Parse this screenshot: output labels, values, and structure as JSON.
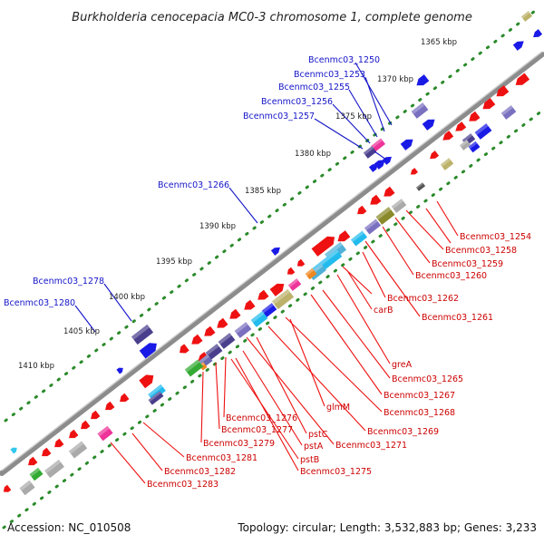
{
  "title": "Burkholderia cenocepacia MC0-3 chromosome 1, complete genome",
  "footer": {
    "accession": "Accession: NC_010508",
    "summary": "Topology: circular; Length: 3,532,883 bp; Genes: 3,233"
  },
  "colors": {
    "backbone": "#8c8c8c",
    "tick": "#2a8a2a",
    "label_upper": "#1414c8",
    "label_lower": "#cc0000",
    "gene_red": "#ee1111",
    "gene_purple": "#4a3f8c"
  },
  "kbp_ticks": [
    "1365 kbp",
    "1370 kbp",
    "1375 kbp",
    "1380 kbp",
    "1385 kbp",
    "1390 kbp",
    "1395 kbp",
    "1400 kbp",
    "1405 kbp",
    "1410 kbp"
  ],
  "labels_upper": [
    "Bcenmc03_1250",
    "Bcenmc03_1253",
    "Bcenmc03_1255",
    "Bcenmc03_1256",
    "Bcenmc03_1257",
    "Bcenmc03_1266",
    "Bcenmc03_1278",
    "Bcenmc03_1280"
  ],
  "labels_lower": [
    "Bcenmc03_1254",
    "Bcenmc03_1258",
    "Bcenmc03_1259",
    "Bcenmc03_1260",
    "Bcenmc03_1262",
    "Bcenmc03_1261",
    "carB",
    "greA",
    "Bcenmc03_1265",
    "Bcenmc03_1267",
    "glmM",
    "Bcenmc03_1268",
    "Bcenmc03_1269",
    "pstC",
    "Bcenmc03_1271",
    "Bcenmc03_1276",
    "Bcenmc03_1277",
    "pstA",
    "Bcenmc03_1279",
    "pstB",
    "Bcenmc03_1275",
    "Bcenmc03_1281",
    "Bcenmc03_1282",
    "Bcenmc03_1283"
  ]
}
